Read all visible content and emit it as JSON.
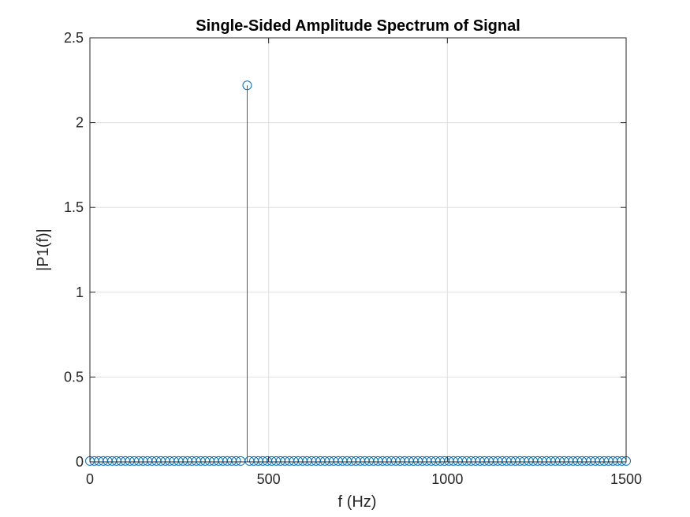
{
  "chart_data": {
    "type": "stem",
    "title": "Single-Sided Amplitude Spectrum of Signal",
    "xlabel": "f (Hz)",
    "ylabel": "|P1(f)|",
    "xlim": [
      0,
      1500
    ],
    "ylim": [
      0,
      2.5
    ],
    "xticks": [
      "0",
      "500",
      "1000",
      "1500"
    ],
    "xtick_values": [
      0,
      500,
      1000,
      1500
    ],
    "yticks": [
      "0",
      "0.5",
      "1",
      "1.5",
      "2",
      "2.5"
    ],
    "ytick_values": [
      0,
      0.5,
      1,
      1.5,
      2,
      2.5
    ],
    "grid": true,
    "color": "#0072BD",
    "x_start": 0,
    "x_step": 12.4,
    "x_end": 1500,
    "peak": {
      "x": 440,
      "y": 2.22
    },
    "baseline_value": 0.005
  }
}
